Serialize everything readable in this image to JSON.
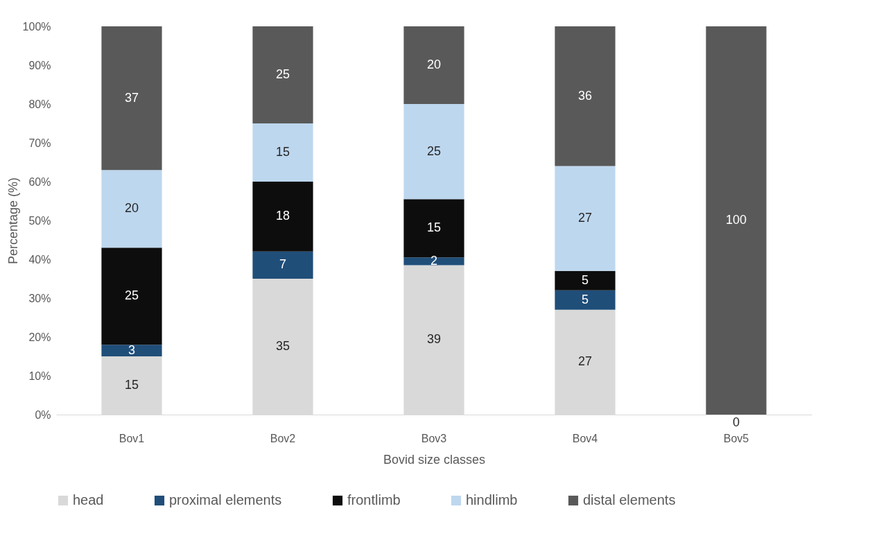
{
  "chart_data": {
    "type": "bar",
    "stacked": true,
    "xlabel": "Bovid size classes",
    "ylabel": "Percentage (%)",
    "categories": [
      "Bov1",
      "Bov2",
      "Bov3",
      "Bov4",
      "Bov5"
    ],
    "series": [
      {
        "name": "head",
        "color": "#d9d9d9",
        "values": [
          15,
          35,
          38.5,
          27,
          null
        ],
        "value_labels": [
          "15",
          "35",
          "39",
          "27",
          null
        ]
      },
      {
        "name": "proximal elements",
        "color": "#1f4e79",
        "values": [
          3,
          7,
          2,
          5,
          null
        ],
        "value_labels": [
          "3",
          "7",
          "2",
          "5",
          null
        ]
      },
      {
        "name": "frontlimb",
        "color": "#0d0d0d",
        "values": [
          25,
          18,
          15,
          5,
          null
        ],
        "value_labels": [
          "25",
          "18",
          "15",
          "5",
          null
        ]
      },
      {
        "name": "hindlimb",
        "color": "#bdd7ee",
        "values": [
          20,
          15,
          24.5,
          27,
          null
        ],
        "value_labels": [
          "20",
          "15",
          "25",
          "27",
          null
        ]
      },
      {
        "name": "distal elements",
        "color": "#595959",
        "values": [
          37,
          25,
          20,
          36,
          100
        ],
        "value_labels": [
          "37",
          "25",
          "20",
          "36",
          "100"
        ]
      }
    ],
    "ylim": [
      0,
      100
    ],
    "yticks": [
      {
        "value": 0,
        "label": "0%"
      },
      {
        "value": 10,
        "label": "10%"
      },
      {
        "value": 20,
        "label": "20%"
      },
      {
        "value": 30,
        "label": "30%"
      },
      {
        "value": 40,
        "label": "40%"
      },
      {
        "value": 50,
        "label": "50%"
      },
      {
        "value": 60,
        "label": "60%"
      },
      {
        "value": 70,
        "label": "70%"
      },
      {
        "value": 80,
        "label": "80%"
      },
      {
        "value": 90,
        "label": "90%"
      },
      {
        "value": 100,
        "label": "100%"
      }
    ],
    "annotations": [
      {
        "text": "0",
        "x": "Bov5",
        "y": 0
      }
    ],
    "grid": false,
    "legend": "bottom"
  }
}
